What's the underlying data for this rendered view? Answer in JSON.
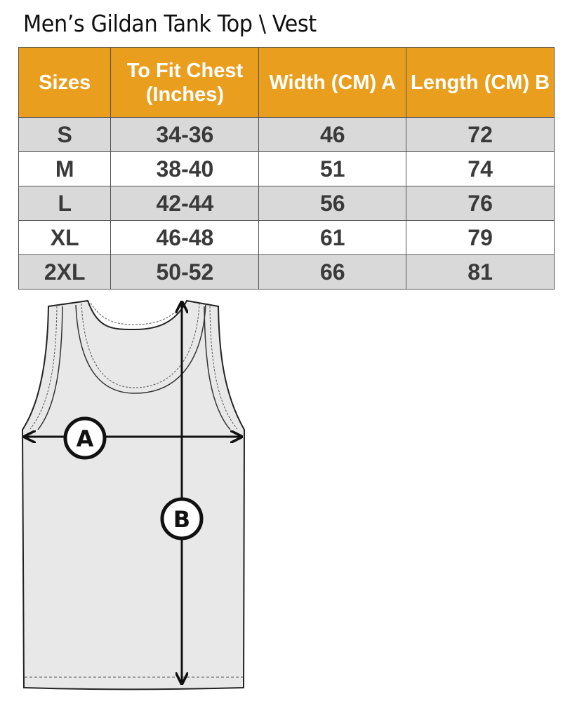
{
  "title": "Men’s Gildan Tank Top \\ Vest",
  "table": {
    "headers": [
      "Sizes",
      "To Fit Chest (Inches)",
      "Width (CM) A",
      "Length  (CM) B"
    ],
    "rows": [
      [
        "S",
        "34-36",
        "46",
        "72"
      ],
      [
        "M",
        "38-40",
        "51",
        "74"
      ],
      [
        "L",
        "42-44",
        "56",
        "76"
      ],
      [
        "XL",
        "46-48",
        "61",
        "79"
      ],
      [
        "2XL",
        "50-52",
        "66",
        "81"
      ]
    ]
  },
  "diagram": {
    "label_a": "A",
    "label_b": "B"
  },
  "colors": {
    "header": "#E99E1E",
    "stripe": "#D9D9D9",
    "garment": "#E8E8E8"
  }
}
